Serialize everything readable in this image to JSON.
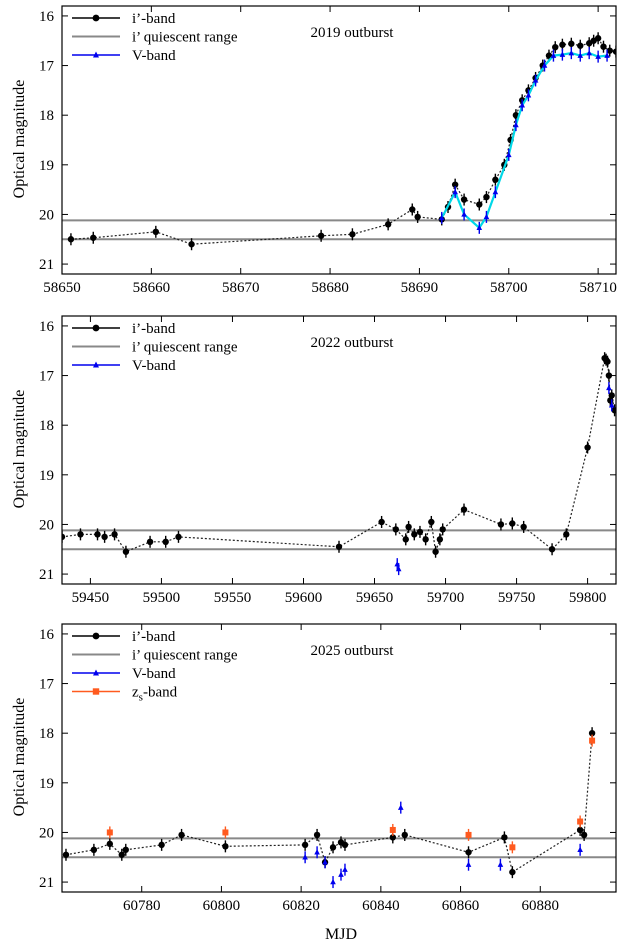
{
  "figure": {
    "ylabel": "Optical magnitude",
    "xlabel": "MJD"
  },
  "chart_data": [
    {
      "type": "line",
      "title": "2019 outburst",
      "xlim": [
        58650,
        58712
      ],
      "ylim": [
        21.2,
        15.8
      ],
      "xticks": [
        58650,
        58660,
        58670,
        58680,
        58690,
        58700,
        58710
      ],
      "yticks": [
        16,
        17,
        18,
        19,
        20,
        21
      ],
      "quiescent": [
        20.12,
        20.5
      ],
      "legend": [
        "i’-band",
        "i’ quiescent range",
        "V-band"
      ],
      "series": [
        {
          "name": "i’-band",
          "color": "#000000",
          "x": [
            58651,
            58653.5,
            58660.5,
            58664.5,
            58679,
            58682.5,
            58686.5,
            58689.2,
            58689.8,
            58692.5,
            58693.2,
            58694,
            58695,
            58696.7,
            58697.5,
            58698.5,
            58699.5,
            58700.2,
            58700.8,
            58701.5,
            58702.2,
            58703,
            58703.8,
            58704.5,
            58705.2,
            58706,
            58707,
            58708,
            58709,
            58709.5,
            58710,
            58710.6,
            58711.3,
            58712
          ],
          "y": [
            20.5,
            20.47,
            20.35,
            20.6,
            20.43,
            20.4,
            20.2,
            19.9,
            20.05,
            20.1,
            19.85,
            19.4,
            19.7,
            19.8,
            19.65,
            19.3,
            19.0,
            18.5,
            18.0,
            17.7,
            17.5,
            17.25,
            17.0,
            16.8,
            16.63,
            16.58,
            16.56,
            16.6,
            16.55,
            16.5,
            16.45,
            16.62,
            16.7,
            16.72
          ]
        },
        {
          "name": "V-band",
          "color": "#0000ee",
          "x": [
            58692.5,
            58694,
            58695,
            58696.7,
            58697.5,
            58698.5,
            58700,
            58700.8,
            58701.5,
            58702.2,
            58703,
            58704,
            58705,
            58706,
            58707,
            58708,
            58709,
            58710,
            58711
          ],
          "y": [
            20.07,
            19.55,
            20.0,
            20.27,
            20.05,
            19.55,
            18.8,
            18.2,
            17.8,
            17.6,
            17.3,
            17.0,
            16.8,
            16.78,
            16.75,
            16.8,
            16.75,
            16.82,
            16.8
          ]
        }
      ]
    },
    {
      "type": "line",
      "title": "2022 outburst",
      "xlim": [
        59430,
        59820
      ],
      "ylim": [
        21.2,
        15.8
      ],
      "xticks": [
        59450,
        59500,
        59550,
        59600,
        59650,
        59700,
        59750,
        59800
      ],
      "yticks": [
        16,
        17,
        18,
        19,
        20,
        21
      ],
      "quiescent": [
        20.12,
        20.5
      ],
      "legend": [
        "i’-band",
        "i’ quiescent range",
        "V-band"
      ],
      "series": [
        {
          "name": "i’-band",
          "color": "#000000",
          "x": [
            59430,
            59443,
            59455,
            59460,
            59467,
            59475,
            59492,
            59503,
            59512,
            59625,
            59655,
            59665,
            59672,
            59674,
            59678,
            59682,
            59686,
            59690,
            59693,
            59696,
            59698,
            59713,
            59739,
            59747,
            59755,
            59775,
            59785,
            59800,
            59812,
            59813,
            59814,
            59815,
            59816,
            59817,
            59819
          ],
          "y": [
            20.25,
            20.2,
            20.2,
            20.25,
            20.2,
            20.55,
            20.35,
            20.35,
            20.25,
            20.45,
            19.95,
            20.1,
            20.3,
            20.05,
            20.2,
            20.15,
            20.3,
            19.95,
            20.55,
            20.3,
            20.1,
            19.7,
            20.0,
            19.98,
            20.05,
            20.5,
            20.2,
            18.45,
            16.65,
            16.68,
            16.72,
            17.0,
            17.5,
            17.4,
            17.7
          ]
        },
        {
          "name": "V-band",
          "color": "#0000ee",
          "x": [
            59666,
            59667,
            59815,
            59817
          ],
          "y": [
            20.8,
            20.9,
            17.25,
            17.6
          ]
        }
      ]
    },
    {
      "type": "line",
      "title": "2025 outburst",
      "xlim": [
        60760,
        60899
      ],
      "ylim": [
        21.2,
        15.8
      ],
      "xticks": [
        60780,
        60800,
        60820,
        60840,
        60860,
        60880
      ],
      "yticks": [
        16,
        17,
        18,
        19,
        20,
        21
      ],
      "quiescent": [
        20.12,
        20.5
      ],
      "legend": [
        "i’-band",
        "i’ quiescent range",
        "V-band",
        "z_s-band"
      ],
      "series": [
        {
          "name": "i’-band",
          "color": "#000000",
          "x": [
            60761,
            60768,
            60772,
            60775,
            60776,
            60785,
            60790,
            60801,
            60821,
            60824,
            60826,
            60828,
            60830,
            60831,
            60843,
            60846,
            60862,
            60871,
            60873,
            60890,
            60891,
            60893
          ],
          "y": [
            20.45,
            20.35,
            20.23,
            20.45,
            20.35,
            20.25,
            20.05,
            20.28,
            20.25,
            20.05,
            20.6,
            20.3,
            20.2,
            20.25,
            20.1,
            20.05,
            20.4,
            20.1,
            20.8,
            19.95,
            20.05,
            18.0
          ]
        },
        {
          "name": "V-band",
          "color": "#0000ee",
          "x": [
            60821,
            60824,
            60826,
            60828,
            60830,
            60831,
            60845,
            60862,
            60870,
            60890
          ],
          "y": [
            20.5,
            20.4,
            20.6,
            21.0,
            20.85,
            20.75,
            19.5,
            20.65,
            20.65,
            20.35
          ]
        },
        {
          "name": "z_s-band",
          "color": "#ff5a1f",
          "x": [
            60772,
            60801,
            60843,
            60862,
            60873,
            60890,
            60893
          ],
          "y": [
            20.0,
            20.0,
            19.95,
            20.05,
            20.3,
            19.78,
            18.15
          ]
        }
      ]
    }
  ]
}
